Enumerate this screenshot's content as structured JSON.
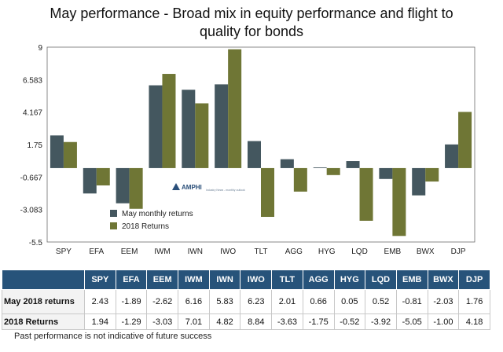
{
  "title_line1": "May performance - Broad mix in equity performance and flight to",
  "title_line2": "quality for bonds",
  "logo_text": "AMPHI",
  "logo_sub": "Industry News - monthly outlook",
  "footnote": "Past performance is not indicative of future success",
  "colors": {
    "series1": "#44575f",
    "series2": "#6f7635",
    "table_header": "#27537a"
  },
  "chart_data": {
    "type": "bar",
    "categories": [
      "SPY",
      "EFA",
      "EEM",
      "IWM",
      "IWN",
      "IWO",
      "TLT",
      "AGG",
      "HYG",
      "LQD",
      "EMB",
      "BWX",
      "DJP"
    ],
    "series": [
      {
        "name": "May monthly returns",
        "values": [
          2.43,
          -1.89,
          -2.62,
          6.16,
          5.83,
          6.23,
          2.01,
          0.66,
          0.05,
          0.52,
          -0.81,
          -2.03,
          1.76
        ]
      },
      {
        "name": "2018 Returns",
        "values": [
          1.94,
          -1.29,
          -3.03,
          7.01,
          4.82,
          8.84,
          -3.63,
          -1.75,
          -0.52,
          -3.92,
          -5.05,
          -1.0,
          4.18
        ]
      }
    ],
    "yticks": [
      "9",
      "6.583",
      "4.167",
      "1.75",
      "-0.667",
      "-3.083",
      "-5.5"
    ],
    "ylim": [
      -5.5,
      9
    ],
    "legend_placement": "lower-left",
    "grid": false
  },
  "table": {
    "header_blank": "",
    "columns": [
      "SPY",
      "EFA",
      "EEM",
      "IWM",
      "IWN",
      "IWO",
      "TLT",
      "AGG",
      "HYG",
      "LQD",
      "EMB",
      "BWX",
      "DJP"
    ],
    "rows": [
      {
        "label": "May 2018 returns",
        "values": [
          "2.43",
          "-1.89",
          "-2.62",
          "6.16",
          "5.83",
          "6.23",
          "2.01",
          "0.66",
          "0.05",
          "0.52",
          "-0.81",
          "-2.03",
          "1.76"
        ]
      },
      {
        "label": "2018 Returns",
        "values": [
          "1.94",
          "-1.29",
          "-3.03",
          "7.01",
          "4.82",
          "8.84",
          "-3.63",
          "-1.75",
          "-0.52",
          "-3.92",
          "-5.05",
          "-1.00",
          "4.18"
        ]
      }
    ]
  }
}
